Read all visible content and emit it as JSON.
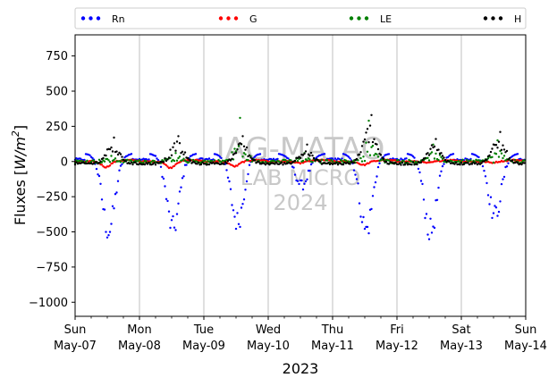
{
  "chart_data": {
    "type": "scatter",
    "title": "",
    "xlabel": "2023",
    "ylabel": "Fluxes [W/m²]",
    "ylabel_main": "Fluxes [",
    "ylabel_unit": "W/m",
    "ylabel_sup": "2",
    "ylabel_end": "]",
    "ylim": [
      -1100,
      900
    ],
    "xlim": [
      "2023-05-07",
      "2023-05-14"
    ],
    "grid": "vertical only",
    "legend_position": "top",
    "yticks": [
      {
        "value": 750,
        "label": "750"
      },
      {
        "value": 500,
        "label": "500"
      },
      {
        "value": 250,
        "label": "250"
      },
      {
        "value": 0,
        "label": "0"
      },
      {
        "value": -250,
        "label": "−250"
      },
      {
        "value": -500,
        "label": "−500"
      },
      {
        "value": -750,
        "label": "−750"
      },
      {
        "value": -1000,
        "label": "−1000"
      }
    ],
    "xticks": [
      {
        "day": "Sun",
        "date": "May-07"
      },
      {
        "day": "Mon",
        "date": "May-08"
      },
      {
        "day": "Tue",
        "date": "May-09"
      },
      {
        "day": "Wed",
        "date": "May-10"
      },
      {
        "day": "Thu",
        "date": "May-11"
      },
      {
        "day": "Fri",
        "date": "May-12"
      },
      {
        "day": "Sat",
        "date": "May-13"
      },
      {
        "day": "Sun",
        "date": "May-14"
      }
    ],
    "watermark": [
      "IAG-MATAO",
      "LAB MICRO",
      "2024"
    ],
    "series": [
      {
        "name": "Rn",
        "color": "#0000ff",
        "night_value": 60,
        "daily_min": [
          -530,
          -520,
          -470,
          -210,
          -530,
          -540,
          -420
        ],
        "midday_mean": [
          -350,
          -340,
          -300,
          -140,
          -350,
          -360,
          -280
        ]
      },
      {
        "name": "G",
        "color": "#ff0000",
        "night_value": 10,
        "daily_min": [
          -40,
          -45,
          -35,
          -12,
          -25,
          -10,
          -8
        ]
      },
      {
        "name": "LE",
        "color": "#008000",
        "night_value": 0,
        "daily_max": [
          40,
          60,
          310,
          60,
          290,
          120,
          150
        ]
      },
      {
        "name": "H",
        "color": "#000000",
        "night_value": -15,
        "daily_max": [
          170,
          180,
          180,
          120,
          330,
          160,
          210
        ]
      }
    ]
  }
}
